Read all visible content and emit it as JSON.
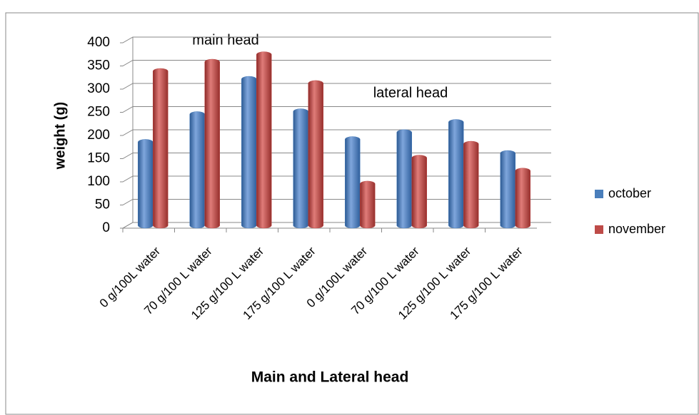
{
  "chart_data": {
    "type": "bar",
    "x_label": "Main and Lateral head",
    "y_label": "weight (g)",
    "annotations": [
      "main head",
      "lateral head"
    ],
    "categories": [
      "0 g/100L water",
      "70 g/100 L water",
      "125 g/100 L water",
      "175 g/100 L water",
      "0 g/100L water",
      "70 g/100 L water",
      "125 g/100 L water",
      "175 g/100 L water"
    ],
    "series": [
      {
        "name": "october",
        "color": "#4a7ebb",
        "values": [
          187,
          247,
          323,
          253,
          193,
          208,
          230,
          163
        ]
      },
      {
        "name": "november",
        "color": "#be4b48",
        "values": [
          340,
          360,
          376,
          314,
          97,
          153,
          183,
          125
        ]
      }
    ],
    "ylim": [
      0,
      400
    ],
    "yticks": [
      0,
      50,
      100,
      150,
      200,
      250,
      300,
      350,
      400
    ],
    "grid": true,
    "legend": "right"
  }
}
